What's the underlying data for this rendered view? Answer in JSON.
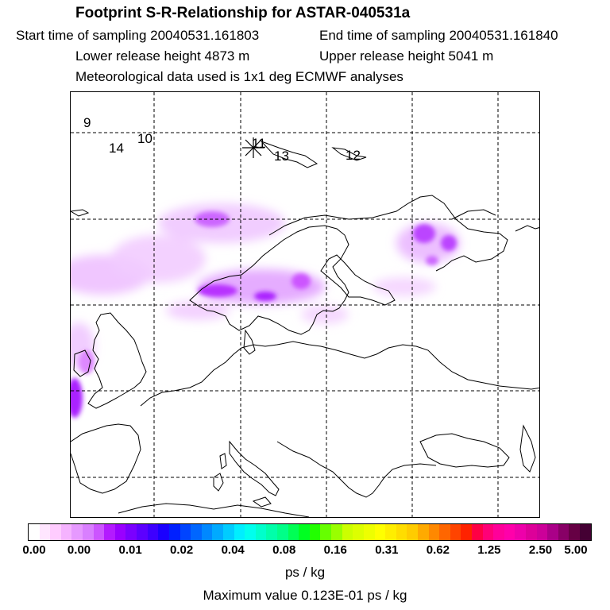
{
  "header": {
    "title": "Footprint S-R-Relationship for ASTAR-040531a",
    "start_label": "Start time of sampling 20040531.161803",
    "end_label": "End time of sampling 20040531.161840",
    "lower_label": "Lower release height 4873 m",
    "upper_label": "Upper release height 5041 m",
    "met_label": "Meteorological data used is 1x1 deg ECMWF analyses"
  },
  "map": {
    "point_labels": [
      "9",
      "14",
      "10",
      "11",
      "13",
      "12"
    ],
    "grid": "dashed",
    "plume_color": "#cc33ff"
  },
  "colorbar": {
    "tick_labels": [
      "0.00",
      "0.00",
      "0.01",
      "0.02",
      "0.04",
      "0.08",
      "0.16",
      "0.31",
      "0.62",
      "1.25",
      "2.50",
      "5.00"
    ],
    "colors": [
      "#ffffff",
      "#ffe6ff",
      "#ffccff",
      "#f5b3ff",
      "#e699ff",
      "#d97fff",
      "#cc55ff",
      "#b31aff",
      "#9900ff",
      "#7a00ff",
      "#5c00ff",
      "#3d00ff",
      "#1a00ff",
      "#0020ff",
      "#0044ff",
      "#0066ff",
      "#0088ff",
      "#00aaff",
      "#00ccff",
      "#00eeff",
      "#00ffee",
      "#00ffcc",
      "#00ffaa",
      "#00ff88",
      "#00ff55",
      "#00ff22",
      "#22ff00",
      "#66ff00",
      "#99ff00",
      "#ccff00",
      "#ddff00",
      "#eeff00",
      "#ffff00",
      "#ffee00",
      "#ffdd00",
      "#ffcc00",
      "#ffaa00",
      "#ff8800",
      "#ff6600",
      "#ff4400",
      "#ff2200",
      "#ff0044",
      "#ff0077",
      "#ff0099",
      "#ff00aa",
      "#ee00aa",
      "#dd0099",
      "#cc0099",
      "#aa0088",
      "#880066",
      "#660044",
      "#440033"
    ],
    "unit": "ps / kg",
    "max_label": "Maximum value  0.123E-01 ps / kg"
  }
}
